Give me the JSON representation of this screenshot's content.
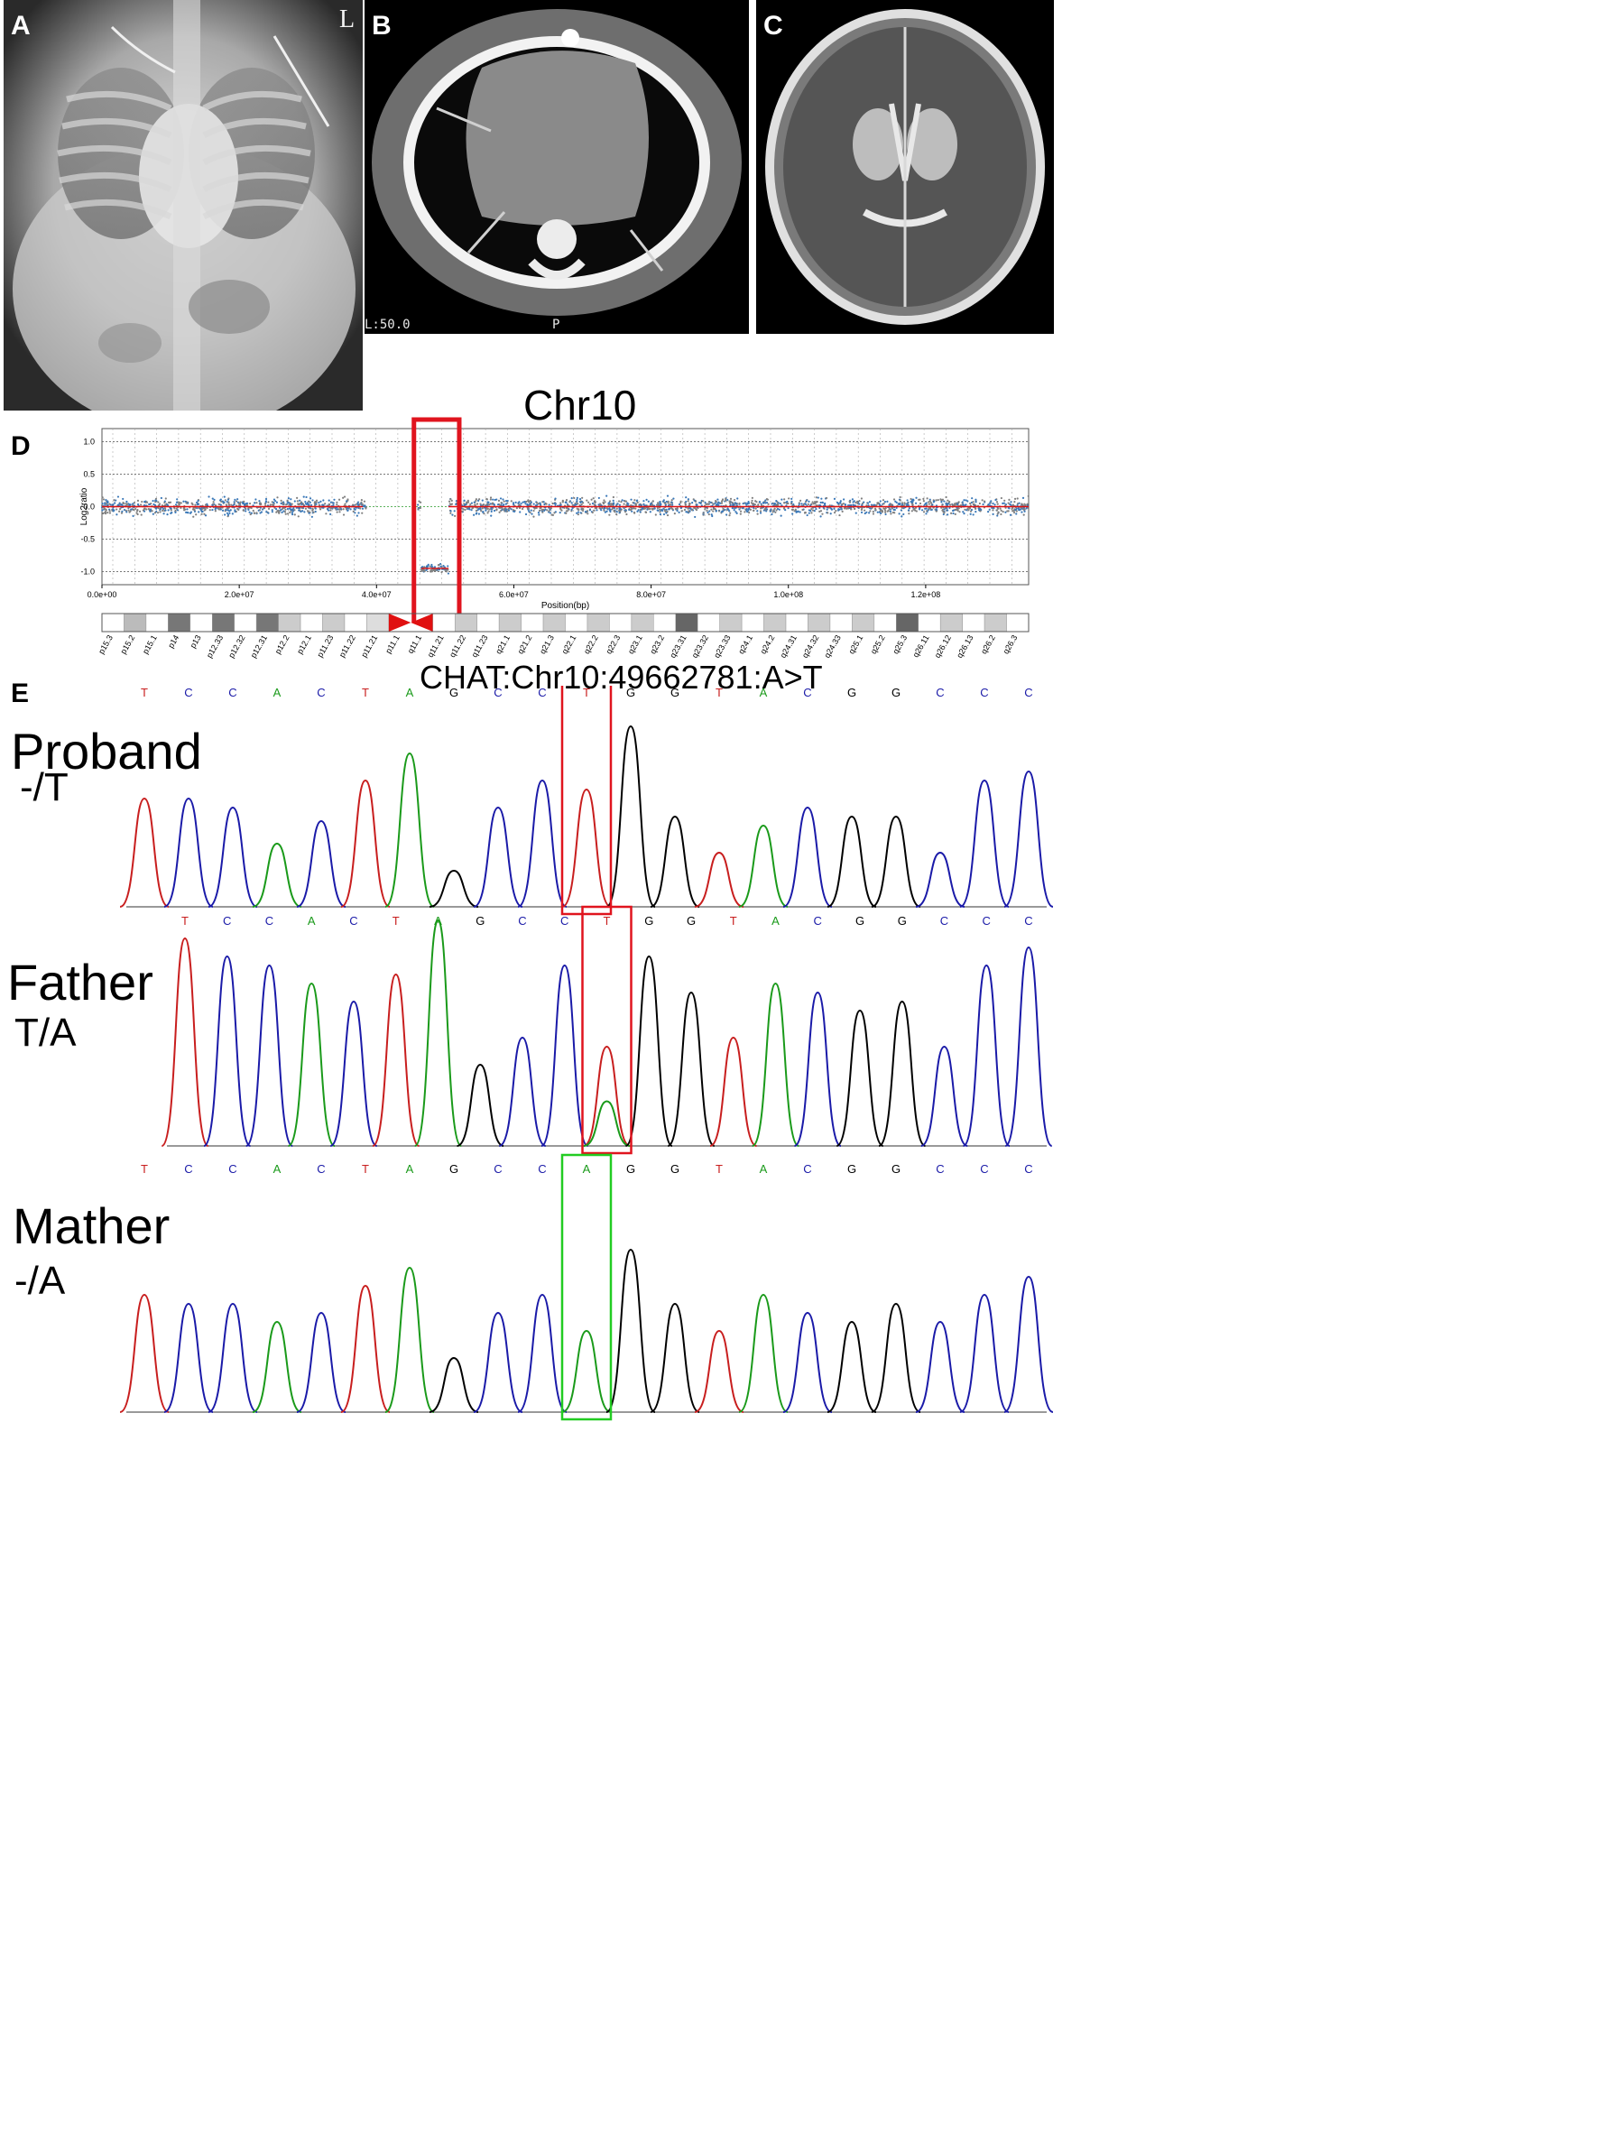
{
  "panels": {
    "A": {
      "letter": "A",
      "marker": "L"
    },
    "B": {
      "letter": "B",
      "window": "L:50.0",
      "orientation": "P"
    },
    "C": {
      "letter": "C"
    },
    "D": {
      "letter": "D"
    },
    "E": {
      "letter": "E"
    }
  },
  "chart_data": {
    "type": "scatter",
    "title": "Chr10",
    "xlabel": "Position(bp)",
    "ylabel": "Log2ratio",
    "xlim": [
      0,
      135000000
    ],
    "ylim": [
      -1.2,
      1.2
    ],
    "xticks": [
      "0.0e+00",
      "2.0e+07",
      "4.0e+07",
      "6.0e+07",
      "8.0e+07",
      "1.0e+08",
      "1.2e+08"
    ],
    "yticks": [
      "1.0",
      "0.5",
      "0.0",
      "-0.5",
      "-1.0"
    ],
    "segments": [
      {
        "x": [
          0,
          38000000
        ],
        "y": 0.0
      },
      {
        "x": [
          46500000,
          50500000
        ],
        "y": -0.95
      },
      {
        "x": [
          50500000,
          135000000
        ],
        "y": 0.0
      }
    ],
    "deletion_region": [
      46500000,
      51000000
    ],
    "series": [
      {
        "color": "#3a78b8"
      },
      {
        "color": "#808080"
      }
    ],
    "ideogram_bands": [
      "p15.3",
      "p15.2",
      "p15.1",
      "p14",
      "p13",
      "p12.33",
      "p12.32",
      "p12.31",
      "p12.2",
      "p12.1",
      "p11.23",
      "p11.22",
      "p11.21",
      "p11.1",
      "q11.1",
      "q11.21",
      "q11.22",
      "q11.23",
      "q21.1",
      "q21.2",
      "q21.3",
      "q22.1",
      "q22.2",
      "q22.3",
      "q23.1",
      "q23.2",
      "q23.31",
      "q23.32",
      "q23.33",
      "q24.1",
      "q24.2",
      "q24.31",
      "q24.32",
      "q24.33",
      "q25.1",
      "q25.2",
      "q25.3",
      "q26.11",
      "q26.12",
      "q26.13",
      "q26.2",
      "q26.3"
    ]
  },
  "sequencing": {
    "mutation_title": "CHAT:Chr10:49662781:A>T",
    "bases": [
      "T",
      "C",
      "C",
      "A",
      "C",
      "T",
      "A",
      "G",
      "C",
      "C",
      "T",
      "G",
      "G",
      "T",
      "A",
      "C",
      "G",
      "G",
      "C",
      "C",
      "C"
    ],
    "tracks": [
      {
        "name": "Proband",
        "genotype": "-/T",
        "highlight_base": "T"
      },
      {
        "name": "Father",
        "genotype": "T/A",
        "highlight_base": "T"
      },
      {
        "name": "Mather",
        "genotype": "-/A",
        "highlight_base": "A"
      }
    ],
    "base_colors": {
      "A": "#1a9a1a",
      "C": "#1a1aa8",
      "G": "#000000",
      "T": "#c81e1e"
    },
    "box_colors": {
      "variant": "#e0141e",
      "reference": "#22cc22"
    }
  }
}
